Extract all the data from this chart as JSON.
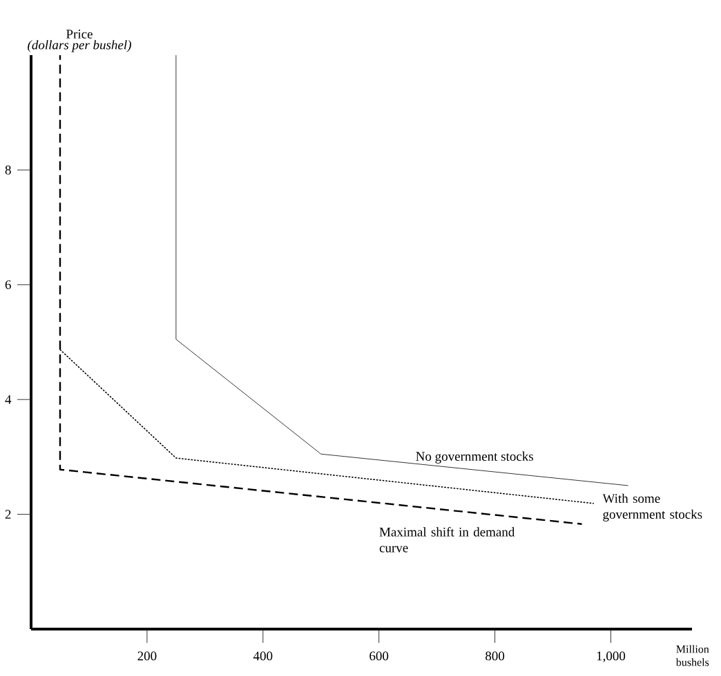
{
  "chart_data": {
    "type": "line",
    "ylabel": "Price",
    "xlabel": "Million bushels",
    "annotations": [
      "*(dollars per bushel)*"
    ],
    "xlim": [
      0,
      1140
    ],
    "ylim": [
      0,
      10
    ],
    "xticks": [
      200,
      400,
      600,
      800,
      {
        "value": 1000,
        "label": "1,000"
      }
    ],
    "yticks": [
      2,
      4,
      6,
      8
    ],
    "series": [
      {
        "name": "No government stocks",
        "color": "#000000",
        "line_style": "solid",
        "x": [
          250,
          250,
          500,
          1030
        ],
        "values": [
          10,
          5.05,
          3.05,
          2.5
        ]
      },
      {
        "name": "With some government stocks",
        "color": "#000000",
        "line_style": "dotted",
        "x": [
          50,
          250,
          970
        ],
        "values": [
          4.87,
          2.98,
          2.19
        ]
      },
      {
        "name": "Maximal shift in demand curve",
        "color": "#000000",
        "line_style": "dashed",
        "x": [
          50,
          50,
          950
        ],
        "values": [
          10,
          2.78,
          1.83
        ]
      }
    ]
  }
}
